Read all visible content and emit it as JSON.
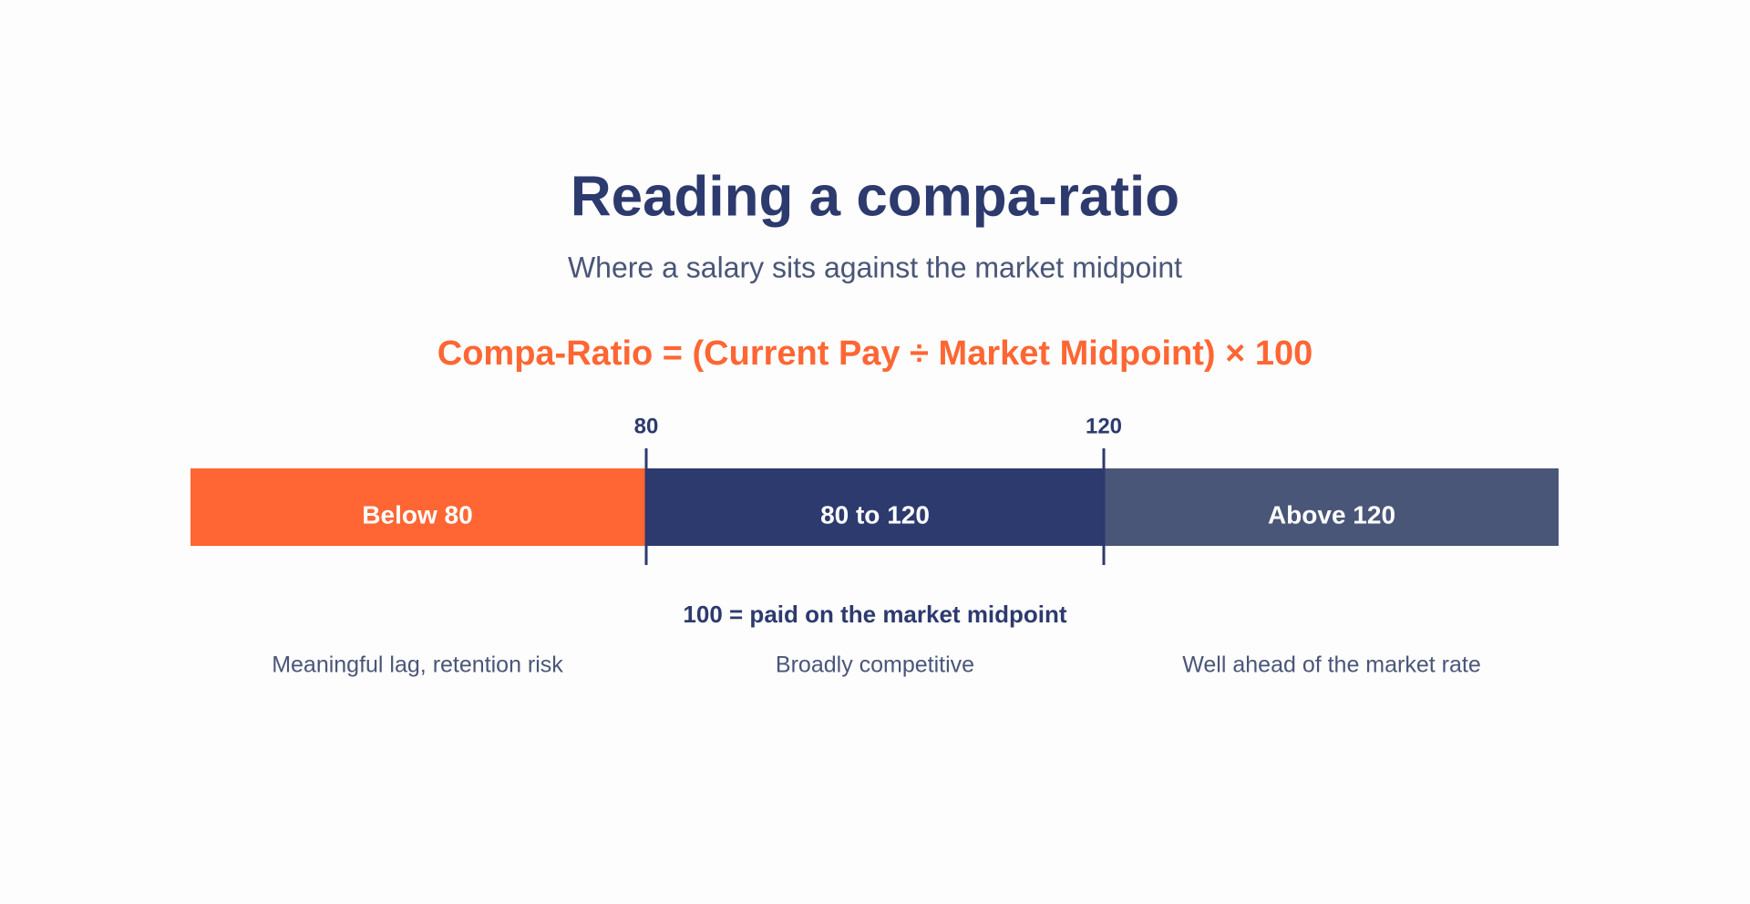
{
  "title": "Reading a compa-ratio",
  "subtitle": "Where a salary sits against the market midpoint",
  "formula": "Compa-Ratio = (Current Pay ÷ Market Midpoint) × 100",
  "ticks": [
    "80",
    "120"
  ],
  "segments": [
    {
      "label": "Below 80",
      "description": "Meaningful lag, retention risk"
    },
    {
      "label": "80 to 120",
      "description": "Broadly competitive"
    },
    {
      "label": "Above 120",
      "description": "Well ahead of the market rate"
    }
  ],
  "note": "100 = paid on the market midpoint"
}
